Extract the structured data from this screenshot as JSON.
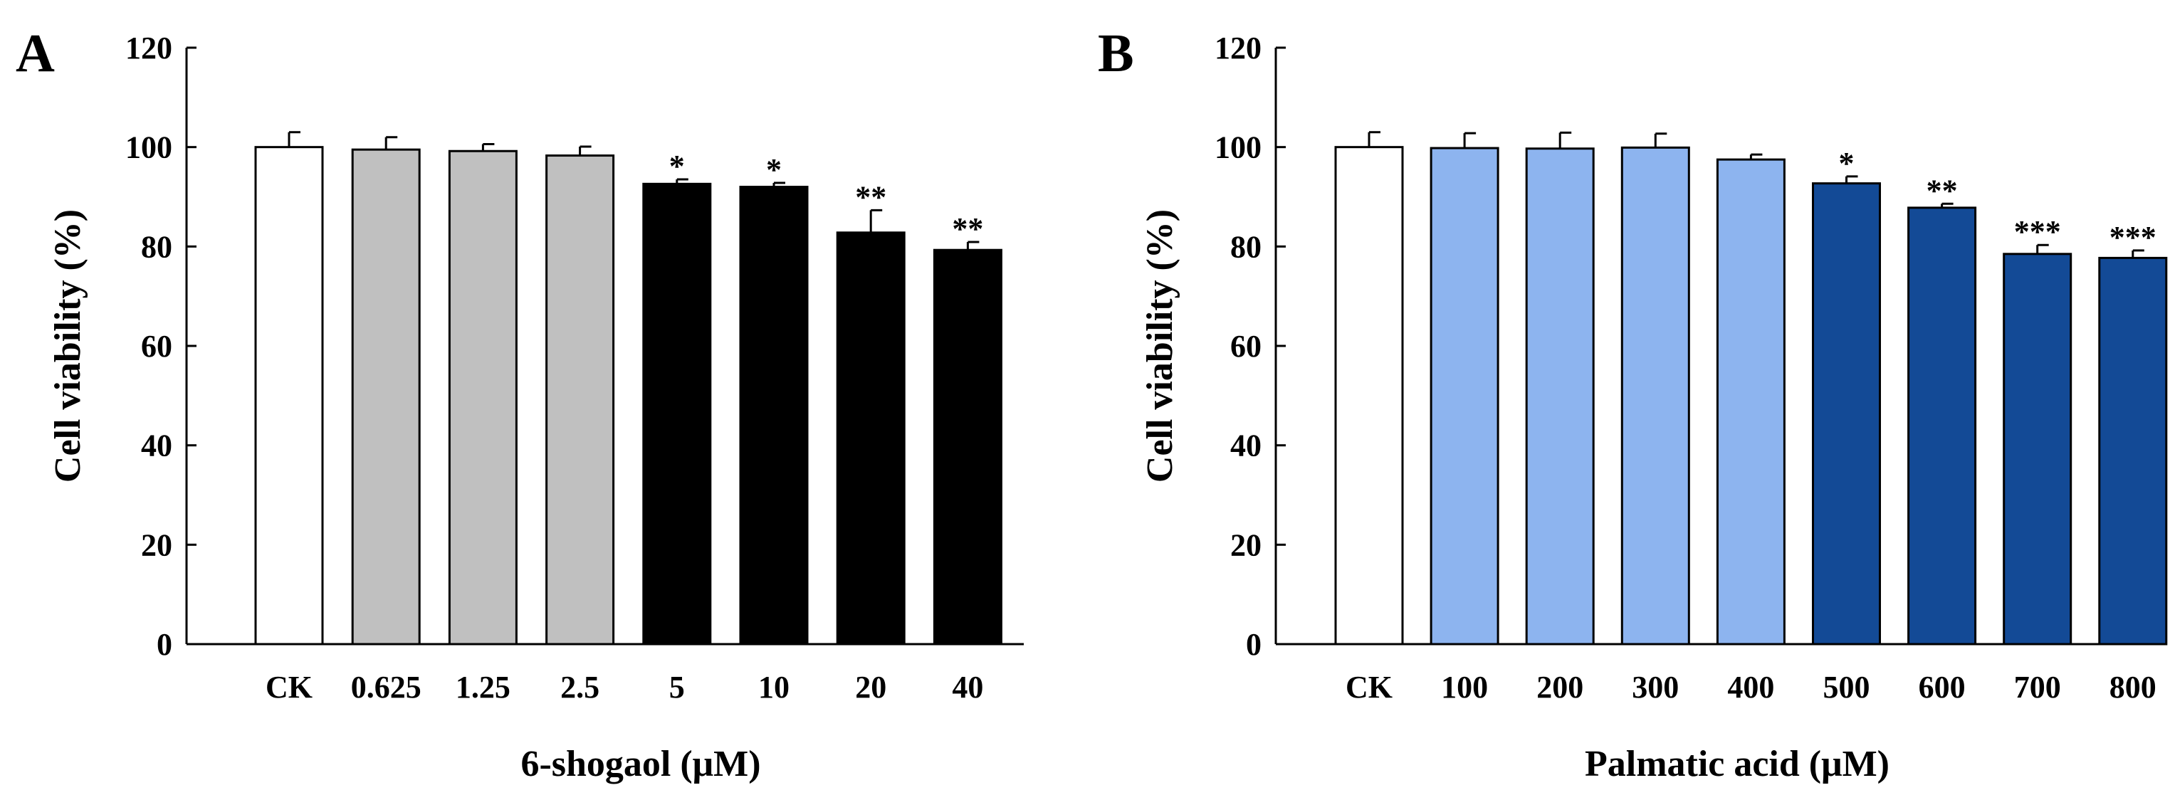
{
  "chart_data": [
    {
      "type": "bar",
      "panel": "A",
      "title": "",
      "xlabel": "6-shogaol (μM)",
      "ylabel": "Cell viability (%)",
      "ylim": [
        0,
        120
      ],
      "yticks": [
        0,
        20,
        40,
        60,
        80,
        100,
        120
      ],
      "categories": [
        "CK",
        "0.625",
        "1.25",
        "2.5",
        "5",
        "10",
        "20",
        "40"
      ],
      "values": [
        100,
        99.5,
        99.2,
        98.3,
        92.6,
        92.0,
        82.8,
        79.3
      ],
      "errors": [
        3.0,
        2.5,
        1.4,
        1.8,
        0.9,
        0.8,
        4.5,
        1.6
      ],
      "significance": [
        "",
        "",
        "",
        "",
        "*",
        "*",
        "**",
        "**"
      ],
      "colors": [
        "#ffffff",
        "#c0c0c0",
        "#c0c0c0",
        "#c0c0c0",
        "#000000",
        "#000000",
        "#000000",
        "#000000"
      ]
    },
    {
      "type": "bar",
      "panel": "B",
      "title": "",
      "xlabel": "Palmatic acid (μM)",
      "ylabel": "Cell viability (%)",
      "ylim": [
        0,
        120
      ],
      "yticks": [
        0,
        20,
        40,
        60,
        80,
        100,
        120
      ],
      "categories": [
        "CK",
        "100",
        "200",
        "300",
        "400",
        "500",
        "600",
        "700",
        "800"
      ],
      "values": [
        100,
        99.8,
        99.7,
        99.9,
        97.5,
        92.7,
        87.8,
        78.5,
        77.7
      ],
      "errors": [
        3.0,
        3.0,
        3.2,
        2.8,
        1.0,
        1.4,
        0.8,
        1.8,
        1.5
      ],
      "significance": [
        "",
        "",
        "",
        "",
        "",
        "*",
        "**",
        "***",
        "***"
      ],
      "colors": [
        "#ffffff",
        "#8db4ef",
        "#8db4ef",
        "#8db4ef",
        "#8db4ef",
        "#134a96",
        "#134a96",
        "#134a96",
        "#134a96"
      ]
    }
  ]
}
